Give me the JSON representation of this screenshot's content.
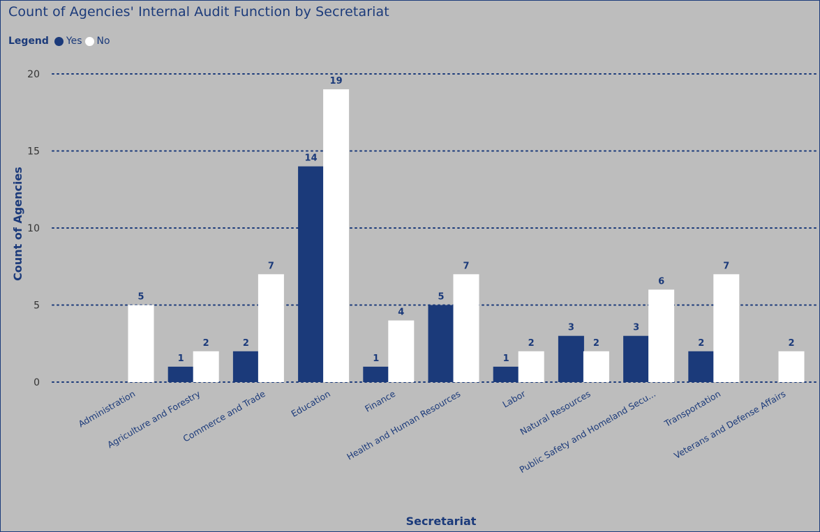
{
  "chart_data": {
    "type": "bar",
    "title": "Count of Agencies' Internal Audit Function by Secretariat",
    "legend_title": "Legend",
    "legend_placement": "top-left",
    "xlabel": "Secretariat",
    "ylabel": "Count of Agencies",
    "ylim": [
      0,
      20
    ],
    "yticks": [
      0,
      5,
      10,
      15,
      20
    ],
    "grid": true,
    "categories": [
      "Administration",
      "Agriculture and Forestry",
      "Commerce and Trade",
      "Education",
      "Finance",
      "Health and Human Resources",
      "Labor",
      "Natural Resources",
      "Public Safety and Homeland Secu...",
      "Transportation",
      "Veterans and Defense Affairs"
    ],
    "series": [
      {
        "name": "Yes",
        "color": "#1b3a7a",
        "values": [
          null,
          1,
          2,
          14,
          1,
          5,
          1,
          3,
          3,
          2,
          null
        ]
      },
      {
        "name": "No",
        "color": "#ffffff",
        "values": [
          5,
          2,
          7,
          19,
          4,
          7,
          2,
          2,
          6,
          7,
          2
        ]
      }
    ]
  }
}
